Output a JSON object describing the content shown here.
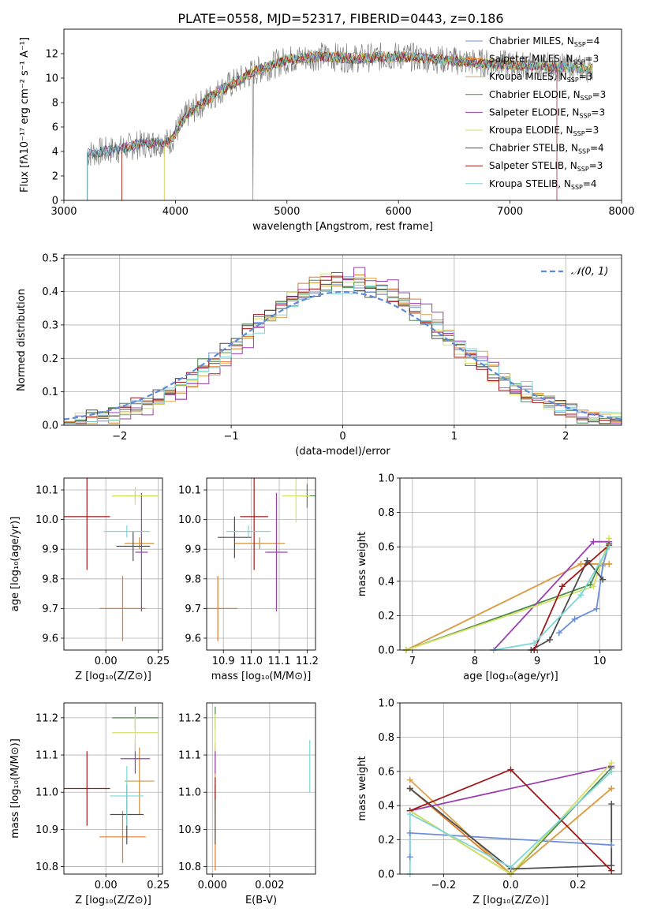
{
  "figure": {
    "title": "PLATE=0558, MJD=52317, FIBERID=0443, z=0.186"
  },
  "colors": [
    "#6c8ed8",
    "#e07b2a",
    "#d9a24a",
    "#4a8a4a",
    "#9b3fb0",
    "#d6e066",
    "#4c4c4c",
    "#a0181a",
    "#7fd6d8"
  ],
  "chart_data": [
    {
      "id": "spectrum",
      "type": "line",
      "xlabel": "wavelength [Angstrom, rest frame]",
      "ylabel": "Flux [fλ10⁻¹⁷ erg cm⁻² s⁻¹ A⁻¹]",
      "xlim": [
        3000,
        8000
      ],
      "ylim": [
        0,
        14
      ],
      "xticks": [
        3000,
        4000,
        5000,
        6000,
        7000,
        8000
      ],
      "yticks": [
        0,
        2,
        4,
        6,
        8,
        10,
        12
      ],
      "grid": false,
      "legend": "top-right",
      "series": [
        {
          "name": "Chabrier MILES, N",
          "sub": "SSP",
          "suffix": "=4"
        },
        {
          "name": "Salpeter MILES, N",
          "sub": "SSP",
          "suffix": "=3"
        },
        {
          "name": "Kroupa MILES, N",
          "sub": "SSP",
          "suffix": "=3"
        },
        {
          "name": "Chabrier ELODIE, N",
          "sub": "SSP",
          "suffix": "=3"
        },
        {
          "name": "Salpeter ELODIE, N",
          "sub": "SSP",
          "suffix": "=3"
        },
        {
          "name": "Kroupa ELODIE, N",
          "sub": "SSP",
          "suffix": "=3"
        },
        {
          "name": "Chabrier STELIB, N",
          "sub": "SSP",
          "suffix": "=4"
        },
        {
          "name": "Salpeter STELIB, N",
          "sub": "SSP",
          "suffix": "=3"
        },
        {
          "name": "Kroupa STELIB, N",
          "sub": "SSP",
          "suffix": "=4"
        }
      ],
      "continuum": {
        "x": [
          3200,
          3500,
          3700,
          3950,
          4100,
          4400,
          4700,
          5000,
          5300,
          5600,
          6000,
          6400,
          6800,
          7200,
          7600
        ],
        "y": [
          3.8,
          4.2,
          4.6,
          4.8,
          7.0,
          9.0,
          10.5,
          11.5,
          11.8,
          11.6,
          11.8,
          11.5,
          11.2,
          11.0,
          10.8
        ]
      }
    },
    {
      "id": "residuals",
      "type": "line",
      "xlabel": "(data-model)/error",
      "ylabel": "Normed distribution",
      "xlim": [
        -2.5,
        2.5
      ],
      "ylim": [
        0,
        0.51
      ],
      "xticks": [
        -2,
        -1,
        0,
        1,
        2
      ],
      "yticks": [
        0.0,
        0.1,
        0.2,
        0.3,
        0.4,
        0.5
      ],
      "grid": true,
      "legend": "top-right",
      "legend_label": "𝒩(0, 1)"
    },
    {
      "id": "age-vs-Z",
      "type": "scatter",
      "xlabel": "Z [log₁₀(Z/Z⊙)]",
      "ylabel": "age  [log₁₀(age/yr)]",
      "xlim": [
        -0.2,
        0.27
      ],
      "ylim": [
        9.56,
        10.14
      ],
      "xticks": [
        0.0,
        0.25
      ],
      "xticklabels": [
        "0.00",
        "0.25"
      ],
      "yticks": [
        9.6,
        9.7,
        9.8,
        9.9,
        10.0,
        10.1
      ],
      "grid": true,
      "points": [
        {
          "x": 0.16,
          "xerr": 0.07,
          "y": 9.92,
          "yerr": 0.02
        },
        {
          "x": 0.08,
          "xerr": 0.11,
          "y": 9.7,
          "yerr": 0.11
        },
        {
          "x": 0.16,
          "xerr": 0.07,
          "y": 9.92,
          "yerr": 0.02
        },
        {
          "x": 0.14,
          "xerr": 0.11,
          "y": 10.08,
          "yerr": 0.01
        },
        {
          "x": 0.17,
          "xerr": 0.03,
          "y": 9.89,
          "yerr": 0.2
        },
        {
          "x": 0.14,
          "xerr": 0.11,
          "y": 10.08,
          "yerr": 0.03
        },
        {
          "x": 0.13,
          "xerr": 0.08,
          "y": 9.91,
          "yerr": 0.05
        },
        {
          "x": -0.09,
          "xerr": 0.11,
          "y": 10.01,
          "yerr": 0.18
        },
        {
          "x": 0.1,
          "xerr": 0.11,
          "y": 9.96,
          "yerr": 0.02
        }
      ]
    },
    {
      "id": "age-vs-mass",
      "type": "scatter",
      "xlabel": "mass [log₁₀(M/M⊙)]",
      "xlim": [
        10.84,
        11.23
      ],
      "ylim": [
        9.56,
        10.14
      ],
      "xticks": [
        10.9,
        11.0,
        11.1,
        11.2
      ],
      "yticks": [
        9.6,
        9.7,
        9.8,
        9.9,
        10.0,
        10.1
      ],
      "grid": true,
      "points": [
        {
          "x": 11.03,
          "xerr": 0.09,
          "y": 9.92,
          "yerr": 0.02
        },
        {
          "x": 10.88,
          "xerr": 0.07,
          "y": 9.7,
          "yerr": 0.11
        },
        {
          "x": 11.03,
          "xerr": 0.09,
          "y": 9.92,
          "yerr": 0.02
        },
        {
          "x": 11.2,
          "xerr": 0.03,
          "y": 10.08,
          "yerr": 0.04
        },
        {
          "x": 11.09,
          "xerr": 0.04,
          "y": 9.89,
          "yerr": 0.2
        },
        {
          "x": 11.16,
          "xerr": 0.05,
          "y": 10.08,
          "yerr": 0.09
        },
        {
          "x": 10.94,
          "xerr": 0.06,
          "y": 9.94,
          "yerr": 0.07
        },
        {
          "x": 11.01,
          "xerr": 0.05,
          "y": 10.01,
          "yerr": 0.18
        },
        {
          "x": 10.99,
          "xerr": 0.08,
          "y": 9.96,
          "yerr": 0.02
        }
      ]
    },
    {
      "id": "massweight-vs-age",
      "type": "line",
      "xlabel": "age  [log₁₀(age/yr)]",
      "ylabel": "mass weight",
      "xlim": [
        6.8,
        10.35
      ],
      "ylim": [
        0,
        1
      ],
      "xticks": [
        7,
        8,
        9,
        10
      ],
      "yticks": [
        0.0,
        0.2,
        0.4,
        0.6,
        0.8,
        1.0
      ],
      "grid": true,
      "series": [
        {
          "x": [
            9.35,
            9.6,
            9.95,
            10.05,
            10.15
          ],
          "y": [
            0.1,
            0.18,
            0.24,
            0.49,
            0.62
          ]
        },
        {
          "x": [
            6.9,
            9.7,
            10.15
          ],
          "y": [
            0.0,
            0.5,
            0.5
          ]
        },
        {
          "x": [
            6.9,
            9.7,
            10.15
          ],
          "y": [
            0.0,
            0.5,
            0.5
          ]
        },
        {
          "x": [
            6.9,
            9.85,
            10.15
          ],
          "y": [
            0.0,
            0.38,
            0.62
          ]
        },
        {
          "x": [
            8.3,
            9.9,
            10.15
          ],
          "y": [
            0.0,
            0.63,
            0.63
          ]
        },
        {
          "x": [
            6.9,
            9.9,
            10.15
          ],
          "y": [
            0.0,
            0.37,
            0.65
          ]
        },
        {
          "x": [
            8.9,
            9.2,
            9.8,
            10.05
          ],
          "y": [
            0.0,
            0.06,
            0.52,
            0.41
          ]
        },
        {
          "x": [
            8.95,
            9.4,
            10.15
          ],
          "y": [
            0.0,
            0.37,
            0.61
          ]
        },
        {
          "x": [
            8.3,
            8.95,
            9.7,
            10.15
          ],
          "y": [
            0.0,
            0.04,
            0.32,
            0.6
          ]
        }
      ]
    },
    {
      "id": "mass-vs-Z",
      "type": "scatter",
      "xlabel": "Z [log₁₀(Z/Z⊙)]",
      "ylabel": "mass [log₁₀(M/M⊙)]",
      "xlim": [
        -0.2,
        0.27
      ],
      "ylim": [
        10.78,
        11.24
      ],
      "xticks": [
        0.0,
        0.25
      ],
      "xticklabels": [
        "0.00",
        "0.25"
      ],
      "yticks": [
        10.8,
        10.9,
        11.0,
        11.1,
        11.2
      ],
      "grid": true,
      "points": [
        {
          "x": 0.16,
          "xerr": 0.07,
          "y": 11.03,
          "yerr": 0.09
        },
        {
          "x": 0.08,
          "xerr": 0.11,
          "y": 10.88,
          "yerr": 0.07
        },
        {
          "x": 0.16,
          "xerr": 0.07,
          "y": 11.03,
          "yerr": 0.09
        },
        {
          "x": 0.14,
          "xerr": 0.11,
          "y": 11.2,
          "yerr": 0.03
        },
        {
          "x": 0.14,
          "xerr": 0.07,
          "y": 11.09,
          "yerr": 0.04
        },
        {
          "x": 0.14,
          "xerr": 0.11,
          "y": 11.16,
          "yerr": 0.05
        },
        {
          "x": 0.1,
          "xerr": 0.08,
          "y": 10.94,
          "yerr": 0.08
        },
        {
          "x": -0.09,
          "xerr": 0.11,
          "y": 11.01,
          "yerr": 0.1
        },
        {
          "x": 0.1,
          "xerr": 0.08,
          "y": 10.99,
          "yerr": 0.08
        }
      ]
    },
    {
      "id": "mass-vs-EBV",
      "type": "scatter",
      "xlabel": "E(B-V)",
      "xlim": [
        -0.0002,
        0.0036
      ],
      "ylim": [
        10.78,
        11.24
      ],
      "xticks": [
        0.0,
        0.002
      ],
      "xticklabels": [
        "0.000",
        "0.002"
      ],
      "yticks": [
        10.8,
        10.9,
        11.0,
        11.1,
        11.2
      ],
      "grid": true,
      "points": [
        {
          "x": 0.0001,
          "xerr": 0,
          "y": 11.03,
          "yerr": 0.09
        },
        {
          "x": 0.0001,
          "xerr": 0,
          "y": 10.88,
          "yerr": 0.09
        },
        {
          "x": 0.0001,
          "xerr": 0,
          "y": 11.03,
          "yerr": 0.09
        },
        {
          "x": 0.0001,
          "xerr": 0,
          "y": 11.2,
          "yerr": 0.03
        },
        {
          "x": 0.0001,
          "xerr": 0,
          "y": 11.09,
          "yerr": 0.04
        },
        {
          "x": 0.0001,
          "xerr": 0,
          "y": 11.16,
          "yerr": 0.05
        },
        {
          "x": 0.0001,
          "xerr": 0,
          "y": 10.94,
          "yerr": 0.08
        },
        {
          "x": 0.0001,
          "xerr": 0,
          "y": 11.01,
          "yerr": 0.03
        },
        {
          "x": 0.0034,
          "xerr": 0,
          "y": 11.07,
          "yerr": 0.07
        }
      ]
    },
    {
      "id": "massweight-vs-Z",
      "type": "line",
      "xlabel": "Z [log₁₀(Z/Z⊙)]",
      "ylabel": "mass weight",
      "xlim": [
        -0.33,
        0.33
      ],
      "ylim": [
        0,
        1
      ],
      "xticks": [
        -0.2,
        0.0,
        0.2
      ],
      "xticklabels": [
        "−0.2",
        "0.0",
        "0.2"
      ],
      "yticks": [
        0.0,
        0.2,
        0.4,
        0.6,
        0.8,
        1.0
      ],
      "grid": true,
      "series": [
        {
          "x": [
            -0.3,
            -0.3,
            0.3
          ],
          "y": [
            0.1,
            0.24,
            0.17
          ]
        },
        {
          "x": [
            -0.3,
            0.0,
            0.3
          ],
          "y": [
            0.5,
            0.0,
            0.5
          ]
        },
        {
          "x": [
            -0.3,
            0.0,
            0.3
          ],
          "y": [
            0.55,
            0.0,
            0.5
          ]
        },
        {
          "x": [
            -0.3,
            0.0,
            0.3
          ],
          "y": [
            0.37,
            0.0,
            0.62
          ]
        },
        {
          "x": [
            -0.3,
            0.3
          ],
          "y": [
            0.37,
            0.63
          ]
        },
        {
          "x": [
            -0.3,
            0.0,
            0.3
          ],
          "y": [
            0.37,
            0.0,
            0.65
          ]
        },
        {
          "x": [
            -0.3,
            0.0,
            0.3,
            0.3
          ],
          "y": [
            0.5,
            0.03,
            0.05,
            0.41
          ]
        },
        {
          "x": [
            -0.3,
            0.0,
            0.3
          ],
          "y": [
            0.37,
            0.61,
            0.02
          ]
        },
        {
          "x": [
            -0.3,
            -0.3,
            0.0,
            0.3
          ],
          "y": [
            0.0,
            0.35,
            0.04,
            0.6
          ]
        }
      ]
    }
  ]
}
